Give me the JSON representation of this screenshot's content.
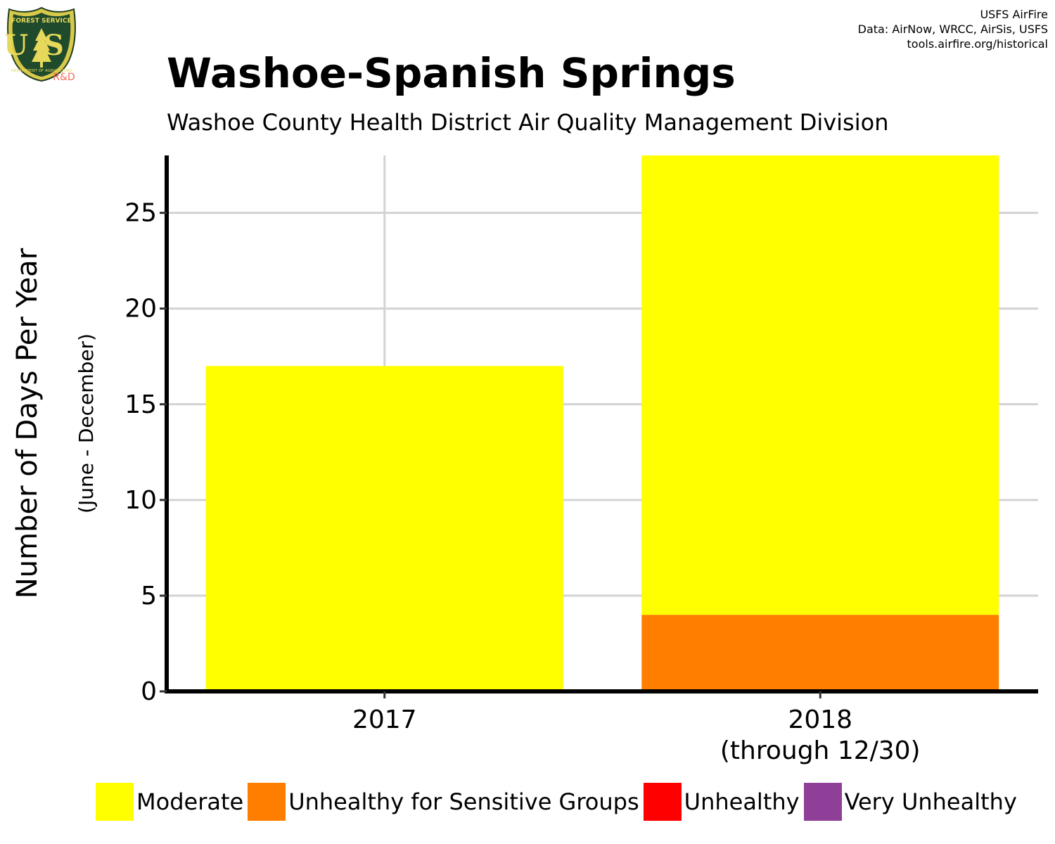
{
  "header": {
    "title": "Washoe-Spanish Springs",
    "subtitle": "Washoe County Health District Air Quality Management Division",
    "credits": [
      "USFS AirFire",
      "Data: AirNow, WRCC, AirSis, USFS",
      "tools.airfire.org/historical"
    ]
  },
  "logo": {
    "text_top": "FOREST SERVICE",
    "text_letters": "US",
    "text_bottom": "DEPARTMENT OF AGRICULTURE",
    "tag": "R&D",
    "tag_color": "#f26b5b"
  },
  "chart_data": {
    "type": "bar",
    "stacked": true,
    "categories": [
      "2017",
      "2018\n(through 12/30)"
    ],
    "ylabel": "Number of Days Per Year",
    "ylabel_sub": "(June - December)",
    "ylim": [
      0,
      28
    ],
    "yticks": [
      0,
      5,
      10,
      15,
      20,
      25
    ],
    "grid": true,
    "legend_position": "bottom",
    "series": [
      {
        "name": "Unhealthy for Sensitive Groups",
        "color": "#ff7e00",
        "values": [
          0,
          4
        ]
      },
      {
        "name": "Moderate",
        "color": "#ffff00",
        "values": [
          17,
          24
        ]
      },
      {
        "name": "Unhealthy",
        "color": "#ff0000",
        "values": [
          0,
          0
        ]
      },
      {
        "name": "Very Unhealthy",
        "color": "#8f3f97",
        "values": [
          0,
          0
        ]
      }
    ],
    "legend": [
      {
        "name": "Moderate",
        "color": "#ffff00"
      },
      {
        "name": "Unhealthy for Sensitive Groups",
        "color": "#ff7e00"
      },
      {
        "name": "Unhealthy",
        "color": "#ff0000"
      },
      {
        "name": "Very Unhealthy",
        "color": "#8f3f97"
      }
    ]
  }
}
